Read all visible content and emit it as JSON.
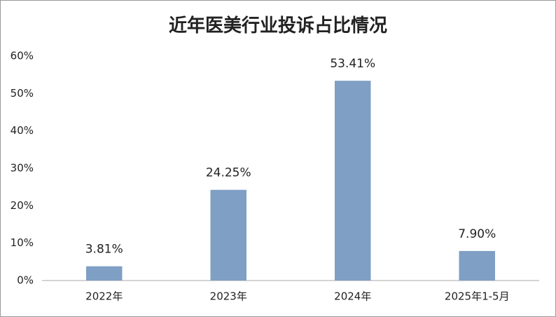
{
  "chart_data": {
    "type": "bar",
    "title": "近年医美行业投诉占比情况",
    "categories": [
      "2022年",
      "2023年",
      "2024年",
      "2025年1-5月"
    ],
    "values": [
      3.81,
      24.25,
      53.41,
      7.9
    ],
    "value_labels": [
      "3.81%",
      "24.25%",
      "53.41%",
      "7.90%"
    ],
    "color": "#7f9fc4",
    "ylim": [
      0,
      60
    ],
    "yticks": [
      {
        "value": 0,
        "label": "0%"
      },
      {
        "value": 10,
        "label": "10%"
      },
      {
        "value": 20,
        "label": "20%"
      },
      {
        "value": 30,
        "label": "30%"
      },
      {
        "value": 40,
        "label": "40%"
      },
      {
        "value": 50,
        "label": "50%"
      },
      {
        "value": 60,
        "label": "60%"
      }
    ],
    "grid": false
  }
}
